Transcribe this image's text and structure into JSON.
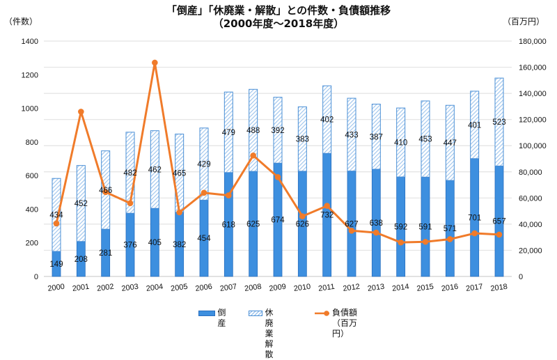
{
  "title": {
    "line1": "「倒産」「休廃業・解散」との件数・負債額推移",
    "line2": "（2000年度～2018年度）"
  },
  "left_unit": "（件数）",
  "right_unit": "（百万円）",
  "legend": {
    "bankruptcy": "倒産",
    "closure_line1": "休廃業",
    "closure_line2": "解散",
    "debt_line1": "負債額",
    "debt_line2": "（百万円）"
  },
  "colors": {
    "bankruptcy": "#3d8fdf",
    "bankruptcy_border": "#2a6fbf",
    "closure_hatch": "#9cc3ec",
    "closure_border": "#4a8fd6",
    "debt_line": "#f07b2a",
    "grid": "#e3e3e3"
  },
  "chart_data": {
    "type": "bar",
    "subtype": "stacked bar + line (dual axis)",
    "title": "「倒産」「休廃業・解散」との件数・負債額推移（2000年度～2018年度）",
    "categories": [
      "2000",
      "2001",
      "2002",
      "2003",
      "2004",
      "2005",
      "2006",
      "2007",
      "2008",
      "2009",
      "2010",
      "2011",
      "2012",
      "2013",
      "2014",
      "2015",
      "2016",
      "2017",
      "2018"
    ],
    "series": [
      {
        "name": "倒産",
        "type": "bar",
        "axis": "left",
        "values": [
          149,
          208,
          281,
          376,
          405,
          382,
          454,
          618,
          625,
          674,
          626,
          732,
          627,
          638,
          592,
          591,
          571,
          701,
          657
        ]
      },
      {
        "name": "休廃業・解散",
        "type": "bar",
        "axis": "left",
        "pattern": "hatched",
        "values": [
          434,
          452,
          466,
          482,
          462,
          465,
          429,
          479,
          488,
          392,
          383,
          402,
          433,
          387,
          410,
          453,
          447,
          401,
          523
        ]
      },
      {
        "name": "負債額（百万円）",
        "type": "line",
        "axis": "right",
        "marker": "circle",
        "values": [
          40500,
          126000,
          64500,
          56000,
          163500,
          49000,
          64000,
          62000,
          92500,
          76000,
          46000,
          54000,
          35000,
          33500,
          26000,
          26500,
          28500,
          33000,
          32000
        ]
      }
    ],
    "left_axis": {
      "label": "（件数）",
      "ylim": [
        0,
        1400
      ],
      "ticks": [
        0,
        200,
        400,
        600,
        800,
        1000,
        1200,
        1400
      ]
    },
    "right_axis": {
      "label": "（百万円）",
      "ylim": [
        0,
        180000
      ],
      "ticks": [
        "0",
        "20,000",
        "40,000",
        "60,000",
        "80,000",
        "100,000",
        "120,000",
        "140,000",
        "160,000",
        "180,000"
      ]
    },
    "grid": true,
    "legend_position": "bottom"
  }
}
